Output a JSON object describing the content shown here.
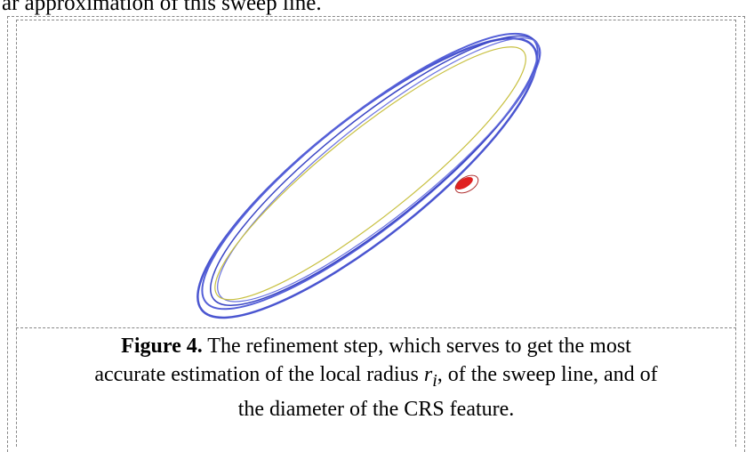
{
  "intro_text": "ar approximation of this sweep line.",
  "figure": {
    "label": "Figure 4.",
    "caption_line_1": "The refinement step, which serves to get the most",
    "caption_line_2_before": "accurate estimation of the local radius ",
    "caption_symbol": "r",
    "caption_subscript": "i",
    "caption_line_2_after": ", of the sweep line, and of",
    "caption_line_3": "the diameter of the CRS feature."
  }
}
